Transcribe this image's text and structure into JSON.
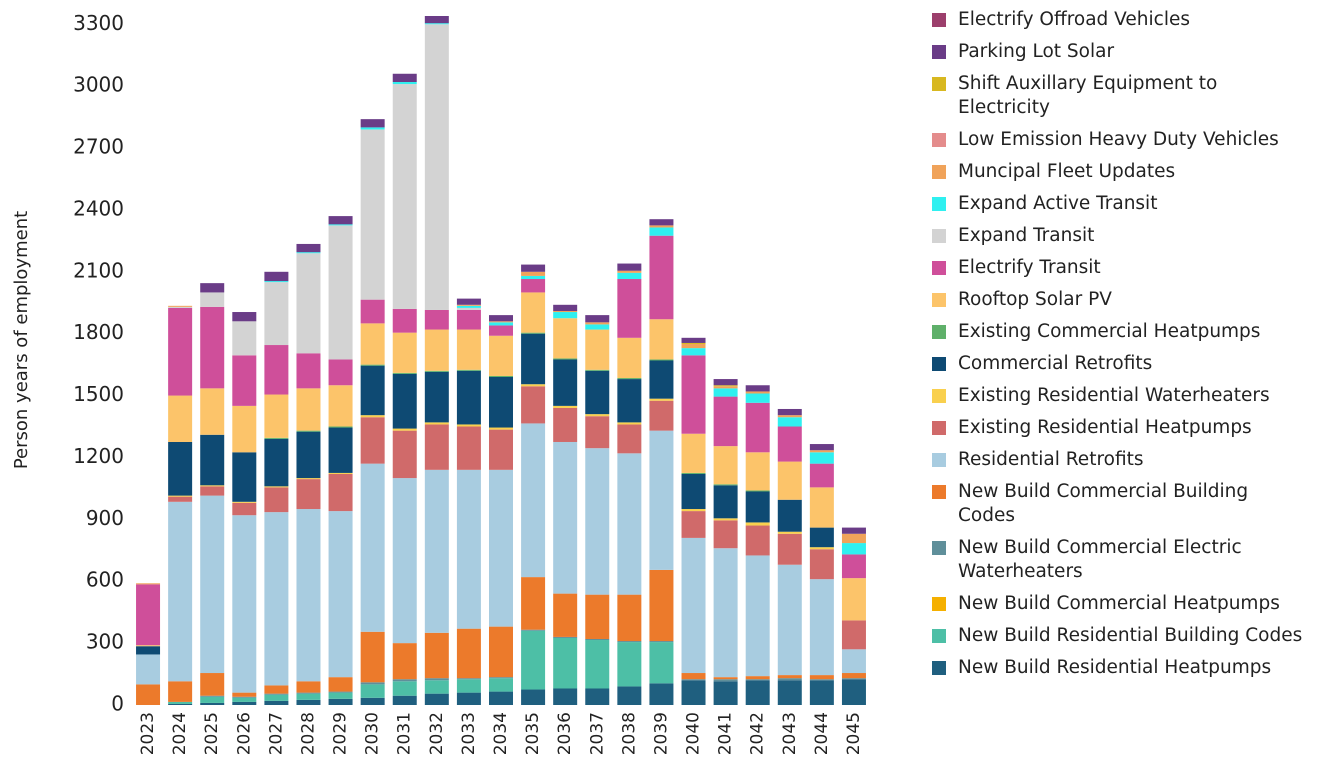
{
  "chart_data": {
    "type": "stacked-bar",
    "y_label": "Person years of employment",
    "categories": [
      "2023",
      "2024",
      "2025",
      "2026",
      "2027",
      "2028",
      "2029",
      "2030",
      "2031",
      "2032",
      "2033",
      "2034",
      "2035",
      "2036",
      "2037",
      "2038",
      "2039",
      "2040",
      "2041",
      "2042",
      "2043",
      "2044",
      "2045"
    ],
    "ylim": [
      0,
      3340
    ],
    "yticks": [
      0,
      300,
      600,
      900,
      1200,
      1500,
      1800,
      2100,
      2400,
      2700,
      3000,
      3300
    ],
    "grid": false,
    "series": [
      {
        "name": "New Build Residential Heatpumps",
        "color": "#1f5f7f",
        "values": [
          0,
          5,
          10,
          15,
          20,
          25,
          30,
          35,
          45,
          55,
          60,
          65,
          75,
          80,
          80,
          90,
          105,
          120,
          115,
          120,
          120,
          120,
          125
        ]
      },
      {
        "name": "New Build Residential Building Codes",
        "color": "#4dbfa6",
        "values": [
          0,
          10,
          30,
          20,
          30,
          30,
          30,
          65,
          70,
          65,
          65,
          65,
          285,
          245,
          235,
          215,
          200,
          0,
          0,
          0,
          0,
          0,
          0
        ]
      },
      {
        "name": "New Build Commercial Heatpumps",
        "color": "#f5b000",
        "values": [
          0,
          0,
          0,
          0,
          0,
          0,
          0,
          0,
          0,
          0,
          0,
          0,
          0,
          0,
          0,
          0,
          0,
          0,
          0,
          0,
          0,
          0,
          0
        ]
      },
      {
        "name": "New Build Commercial Electric Waterheaters",
        "color": "#5f8f9a",
        "values": [
          0,
          0,
          5,
          5,
          5,
          5,
          5,
          10,
          10,
          10,
          5,
          5,
          5,
          5,
          5,
          5,
          5,
          5,
          10,
          5,
          10,
          5,
          5
        ]
      },
      {
        "name": "New Build Commercial Building Codes",
        "color": "#ec7a2b",
        "values": [
          100,
          100,
          110,
          20,
          40,
          55,
          70,
          245,
          175,
          220,
          240,
          245,
          255,
          210,
          215,
          225,
          345,
          30,
          10,
          15,
          15,
          20,
          25
        ]
      },
      {
        "name": "Residential Retrofits",
        "color": "#a8cce0",
        "values": [
          145,
          870,
          860,
          860,
          840,
          835,
          805,
          815,
          800,
          790,
          770,
          760,
          745,
          735,
          710,
          685,
          675,
          655,
          625,
          585,
          535,
          465,
          115
        ]
      },
      {
        "name": "Existing Residential Heatpumps",
        "color": "#d06a6a",
        "values": [
          0,
          25,
          45,
          60,
          120,
          145,
          180,
          225,
          230,
          220,
          210,
          195,
          180,
          165,
          155,
          140,
          145,
          130,
          135,
          145,
          150,
          145,
          140
        ]
      },
      {
        "name": "Existing Residential Waterheaters",
        "color": "#f9d04e",
        "values": [
          0,
          5,
          5,
          5,
          5,
          5,
          5,
          10,
          10,
          10,
          10,
          10,
          10,
          10,
          10,
          10,
          10,
          10,
          10,
          15,
          10,
          10,
          0
        ]
      },
      {
        "name": "Commercial Retrofits",
        "color": "#0e4a73",
        "values": [
          40,
          260,
          245,
          240,
          230,
          225,
          220,
          240,
          265,
          245,
          260,
          245,
          245,
          225,
          210,
          210,
          185,
          170,
          160,
          150,
          155,
          95,
          0
        ]
      },
      {
        "name": "Existing Commercial Heatpumps",
        "color": "#5fb06a",
        "values": [
          0,
          0,
          0,
          0,
          5,
          5,
          5,
          5,
          5,
          5,
          5,
          5,
          5,
          5,
          5,
          5,
          5,
          5,
          5,
          5,
          0,
          0,
          0
        ]
      },
      {
        "name": "Rooftop Solar PV",
        "color": "#fcc46a",
        "values": [
          5,
          225,
          225,
          225,
          210,
          205,
          200,
          200,
          195,
          200,
          195,
          195,
          195,
          195,
          195,
          195,
          195,
          190,
          185,
          185,
          185,
          195,
          205
        ]
      },
      {
        "name": "Electrify Transit",
        "color": "#cf4f9a",
        "values": [
          295,
          425,
          395,
          245,
          240,
          170,
          125,
          115,
          115,
          95,
          95,
          50,
          65,
          0,
          0,
          285,
          405,
          380,
          240,
          240,
          170,
          115,
          115
        ]
      },
      {
        "name": "Expand Transit",
        "color": "#d3d3d3",
        "values": [
          0,
          5,
          70,
          165,
          305,
          485,
          650,
          825,
          1090,
          1385,
          10,
          0,
          0,
          0,
          0,
          0,
          0,
          0,
          0,
          0,
          0,
          0,
          0
        ]
      },
      {
        "name": "Expand Active Transit",
        "color": "#2ff0f0",
        "values": [
          0,
          0,
          0,
          0,
          5,
          5,
          5,
          10,
          10,
          5,
          10,
          15,
          15,
          30,
          25,
          30,
          40,
          35,
          40,
          45,
          45,
          55,
          55
        ]
      },
      {
        "name": "Muncipal Fleet Updates",
        "color": "#f0a35a",
        "values": [
          5,
          5,
          0,
          0,
          0,
          0,
          0,
          0,
          0,
          0,
          5,
          5,
          20,
          5,
          10,
          10,
          10,
          20,
          10,
          10,
          10,
          10,
          45
        ]
      },
      {
        "name": "Low Emission Heavy Duty Vehicles",
        "color": "#e48c8c",
        "values": [
          0,
          0,
          0,
          0,
          0,
          0,
          0,
          0,
          0,
          0,
          0,
          0,
          0,
          0,
          0,
          0,
          0,
          0,
          0,
          0,
          0,
          0,
          0
        ]
      },
      {
        "name": "Shift Auxillary Equipment to Electricity",
        "color": "#d8b820",
        "values": [
          0,
          0,
          0,
          0,
          0,
          0,
          0,
          0,
          0,
          0,
          0,
          0,
          0,
          0,
          0,
          0,
          0,
          5,
          5,
          0,
          0,
          0,
          0
        ]
      },
      {
        "name": "Parking Lot Solar",
        "color": "#6a3c87",
        "values": [
          0,
          0,
          45,
          45,
          45,
          40,
          40,
          40,
          40,
          35,
          30,
          30,
          35,
          30,
          35,
          35,
          30,
          25,
          30,
          30,
          30,
          30,
          30
        ]
      },
      {
        "name": "Electrify Offroad Vehicles",
        "color": "#9c3f6c",
        "values": [
          0,
          0,
          0,
          0,
          0,
          0,
          0,
          0,
          0,
          0,
          0,
          0,
          0,
          0,
          0,
          0,
          0,
          0,
          0,
          0,
          0,
          0,
          0
        ]
      }
    ]
  }
}
